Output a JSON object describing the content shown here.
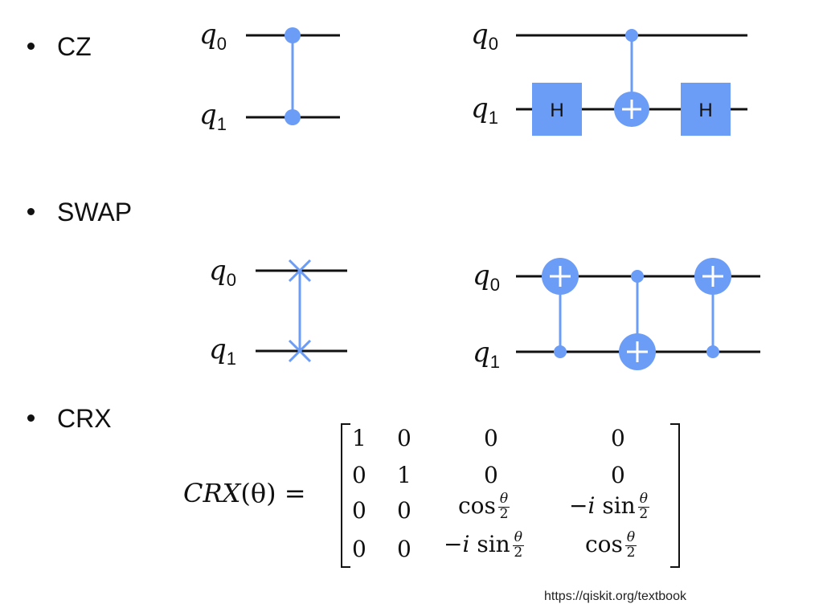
{
  "bullets": [
    "CZ",
    "SWAP",
    "CRX"
  ],
  "qubits": {
    "q0": "q",
    "q0_sub": "0",
    "q1": "q",
    "q1_sub": "1"
  },
  "gates": {
    "h": "H"
  },
  "crx": {
    "lhs_name": "CRX",
    "lhs_arg": "(θ) =",
    "rows": [
      [
        "1",
        "0",
        "0",
        "0"
      ],
      [
        "0",
        "1",
        "0",
        "0"
      ],
      [
        "0",
        "0",
        "cos θ/2",
        "−i sin θ/2"
      ],
      [
        "0",
        "0",
        "−i sin θ/2",
        "cos θ/2"
      ]
    ],
    "cos": "cos",
    "neg_i": "−i",
    "sin": "sin",
    "theta": "θ",
    "two": "2"
  },
  "footer": "https://qiskit.org/textbook",
  "colors": {
    "gate": "#6b9cf6",
    "wire": "#111111"
  }
}
